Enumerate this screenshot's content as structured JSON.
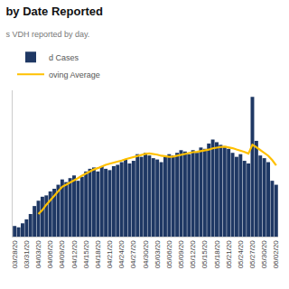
{
  "chart_data": {
    "type": "bar",
    "title": "by Date Reported",
    "subtitle": "s VDH reported by day.",
    "categories": [
      "03/28/20",
      null,
      null,
      "03/31/20",
      null,
      null,
      "04/03/20",
      null,
      null,
      "04/06/20",
      null,
      null,
      "04/09/20",
      null,
      null,
      "04/12/20",
      null,
      null,
      "04/15/20",
      null,
      null,
      "04/18/20",
      null,
      null,
      "04/21/20",
      null,
      null,
      "04/24/20",
      null,
      null,
      "04/27/20",
      null,
      null,
      "04/30/20",
      null,
      null,
      "05/03/20",
      null,
      null,
      "05/06/20",
      null,
      null,
      "05/09/20",
      null,
      null,
      "05/12/20",
      null,
      null,
      "05/15/20",
      null,
      null,
      "05/18/20",
      null,
      null,
      "05/21/20",
      null,
      null,
      "05/24/20",
      null,
      null,
      "05/27/20",
      null,
      null,
      "05/30/20",
      null,
      null,
      "06/02/20"
    ],
    "series": [
      {
        "name": "d Cases",
        "type": "bar",
        "color": "#1F3864",
        "values": [
          80,
          70,
          100,
          130,
          170,
          230,
          270,
          300,
          310,
          340,
          360,
          390,
          430,
          410,
          440,
          460,
          420,
          450,
          490,
          510,
          520,
          490,
          530,
          510,
          500,
          530,
          540,
          560,
          580,
          550,
          570,
          620,
          600,
          630,
          610,
          590,
          580,
          560,
          600,
          620,
          610,
          630,
          650,
          640,
          620,
          650,
          630,
          670,
          660,
          700,
          730,
          710,
          690,
          680,
          660,
          630,
          600,
          620,
          570,
          550,
          1050,
          720,
          610,
          590,
          560,
          420,
          390
        ]
      },
      {
        "name": "oving Average",
        "type": "line",
        "color": "#FFC000",
        "values": [
          null,
          null,
          null,
          null,
          null,
          null,
          170,
          200,
          240,
          275,
          310,
          345,
          375,
          390,
          405,
          420,
          440,
          458,
          475,
          490,
          505,
          515,
          528,
          540,
          548,
          555,
          562,
          572,
          582,
          590,
          598,
          608,
          614,
          622,
          626,
          622,
          616,
          608,
          604,
          600,
          602,
          608,
          618,
          625,
          628,
          635,
          637,
          643,
          646,
          654,
          664,
          671,
          674,
          676,
          673,
          665,
          655,
          647,
          637,
          624,
          690,
          672,
          650,
          630,
          608,
          575,
          535
        ]
      }
    ],
    "ylim": [
      0,
      1100
    ],
    "grid": false,
    "legend": "upper left",
    "tick_labels": "x"
  }
}
